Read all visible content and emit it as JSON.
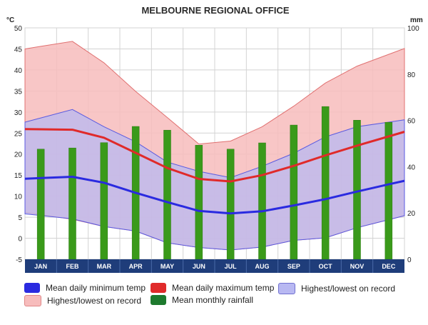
{
  "chart_data": {
    "type": "line",
    "title": "MELBOURNE REGIONAL OFFICE",
    "ylabel_left": "°C",
    "ylabel_right": "mm",
    "categories": [
      "JAN",
      "FEB",
      "MAR",
      "APR",
      "MAY",
      "JUN",
      "JUL",
      "AUG",
      "SEP",
      "OCT",
      "NOV",
      "DEC"
    ],
    "ylim_left": [
      -5,
      50
    ],
    "yticks_left": [
      -5,
      0,
      5,
      10,
      15,
      20,
      25,
      30,
      35,
      40,
      45,
      50
    ],
    "ylim_right": [
      0,
      100
    ],
    "yticks_right": [
      0,
      20,
      40,
      60,
      80,
      100
    ],
    "temp_max_record": {
      "name": "Highest/lowest on record",
      "high": [
        45.6,
        46.8,
        41.7,
        34.9,
        28.7,
        22.4,
        23.1,
        26.5,
        31.4,
        36.9,
        40.9,
        43.7
      ],
      "low": [
        5.6,
        4.5,
        2.8,
        1.7,
        -1.1,
        -2.2,
        -2.8,
        -2.1,
        -0.5,
        0.1,
        2.5,
        4.4
      ]
    },
    "temp_min_record": {
      "name": "Highest/lowest on record",
      "high": [
        28.6,
        30.6,
        26.5,
        22.9,
        18.1,
        15.9,
        14.4,
        17.1,
        20.2,
        24.1,
        26.5,
        27.6
      ],
      "low": [
        5.4,
        4.6,
        2.8,
        1.7,
        -1.1,
        -2.2,
        -2.8,
        -2.1,
        -0.5,
        0.1,
        2.5,
        4.4
      ]
    },
    "mean_min": {
      "name": "Mean daily minimum temp",
      "values": [
        14.3,
        14.6,
        13.2,
        10.8,
        8.6,
        6.5,
        5.9,
        6.4,
        7.8,
        9.3,
        11.1,
        12.8
      ]
    },
    "mean_max": {
      "name": "Mean daily maximum temp",
      "values": [
        25.9,
        25.8,
        23.9,
        20.3,
        16.7,
        14.1,
        13.5,
        15.0,
        17.2,
        19.7,
        22.0,
        24.2
      ]
    },
    "rainfall": {
      "name": "Mean monthly rainfall",
      "values": [
        47.6,
        48.1,
        50.4,
        57.4,
        55.8,
        49.3,
        47.6,
        50.3,
        58.0,
        66.0,
        60.1,
        59.2
      ]
    },
    "colors": {
      "mean_min": "#2a2ae0",
      "mean_max": "#e02a2a",
      "min_band": "#b8b8f2",
      "max_band": "#f7bcbc",
      "rainfall": "#3a9a1a",
      "axis_bar": "#1f3d7a"
    }
  },
  "legend": {
    "mean_min": "Mean daily minimum temp",
    "mean_max": "Mean daily maximum temp",
    "min_record": "Highest/lowest on record",
    "max_record": "Highest/lowest on record",
    "rainfall": "Mean monthly rainfall"
  }
}
